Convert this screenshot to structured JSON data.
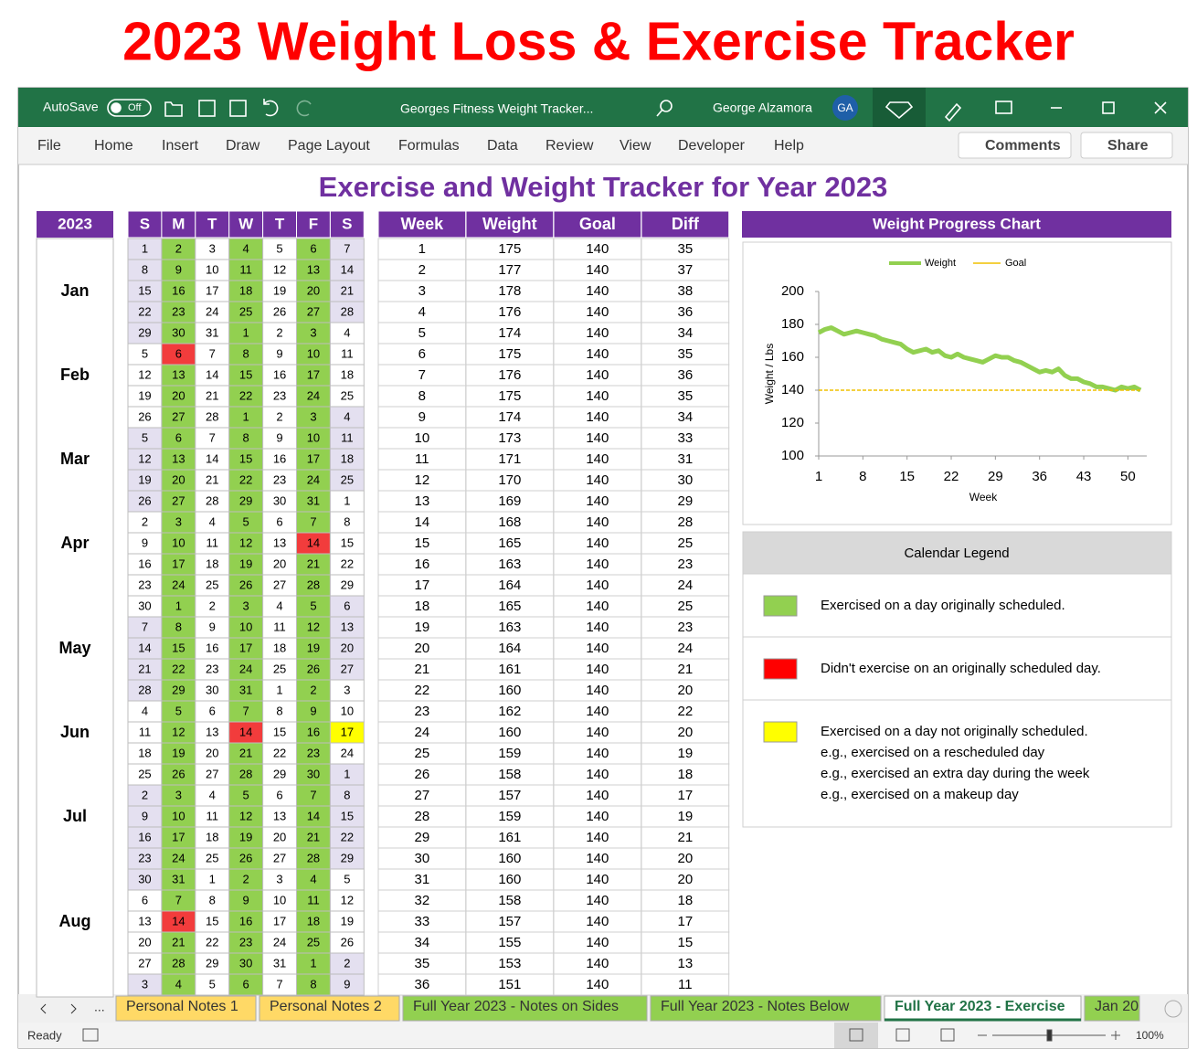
{
  "header": {
    "title": "2023 Weight Loss & Exercise Tracker"
  },
  "window": {
    "autosave": "AutoSave",
    "autosave_state": "Off",
    "file_name": "Georges Fitness Weight Tracker...",
    "user": "George Alzamora",
    "user_initials": "GA"
  },
  "ribbon": {
    "tabs": [
      "File",
      "Home",
      "Insert",
      "Draw",
      "Page Layout",
      "Formulas",
      "Data",
      "Review",
      "View",
      "Developer",
      "Help"
    ],
    "comments": "Comments",
    "share": "Share"
  },
  "sheet": {
    "title": "Exercise and Weight Tracker for Year 2023"
  },
  "calendar": {
    "year": "2023",
    "weekdays": [
      "S",
      "M",
      "T",
      "W",
      "T",
      "F",
      "S"
    ],
    "colors": {
      "l": "#e4e0f0",
      "g": "#92d050",
      "r": "#f23c3c",
      "y": "#ffff00",
      "w": "#ffffff"
    },
    "weeks": [
      {
        "days": [
          1,
          2,
          3,
          4,
          5,
          6,
          7
        ],
        "colors": "lgwgwgl"
      },
      {
        "days": [
          8,
          9,
          10,
          11,
          12,
          13,
          14
        ],
        "colors": "lgwgwgl"
      },
      {
        "days": [
          15,
          16,
          17,
          18,
          19,
          20,
          21
        ],
        "colors": "lgwgwgl",
        "month": "Jan"
      },
      {
        "days": [
          22,
          23,
          24,
          25,
          26,
          27,
          28
        ],
        "colors": "lgwgwgl"
      },
      {
        "days": [
          29,
          30,
          31,
          1,
          2,
          3,
          4
        ],
        "colors": "lgwgwgw"
      },
      {
        "days": [
          5,
          6,
          7,
          8,
          9,
          10,
          11
        ],
        "colors": "wrwgwgw"
      },
      {
        "days": [
          12,
          13,
          14,
          15,
          16,
          17,
          18
        ],
        "colors": "wgwgwgw",
        "month": "Feb"
      },
      {
        "days": [
          19,
          20,
          21,
          22,
          23,
          24,
          25
        ],
        "colors": "wgwgwgw"
      },
      {
        "days": [
          26,
          27,
          28,
          1,
          2,
          3,
          4
        ],
        "colors": "wgwgwgl"
      },
      {
        "days": [
          5,
          6,
          7,
          8,
          9,
          10,
          11
        ],
        "colors": "lgwgwgl"
      },
      {
        "days": [
          12,
          13,
          14,
          15,
          16,
          17,
          18
        ],
        "colors": "lgwgwgl",
        "month": "Mar"
      },
      {
        "days": [
          19,
          20,
          21,
          22,
          23,
          24,
          25
        ],
        "colors": "lgwgwgl"
      },
      {
        "days": [
          26,
          27,
          28,
          29,
          30,
          31,
          1
        ],
        "colors": "lgwgwgw"
      },
      {
        "days": [
          2,
          3,
          4,
          5,
          6,
          7,
          8
        ],
        "colors": "wgwgwgw"
      },
      {
        "days": [
          9,
          10,
          11,
          12,
          13,
          14,
          15
        ],
        "colors": "wgwgwrw",
        "month": "Apr"
      },
      {
        "days": [
          16,
          17,
          18,
          19,
          20,
          21,
          22
        ],
        "colors": "wgwgwgw"
      },
      {
        "days": [
          23,
          24,
          25,
          26,
          27,
          28,
          29
        ],
        "colors": "wgwgwgw"
      },
      {
        "days": [
          30,
          1,
          2,
          3,
          4,
          5,
          6
        ],
        "colors": "wgwgwgl"
      },
      {
        "days": [
          7,
          8,
          9,
          10,
          11,
          12,
          13
        ],
        "colors": "lgwgwgl"
      },
      {
        "days": [
          14,
          15,
          16,
          17,
          18,
          19,
          20
        ],
        "colors": "lgwgwgl",
        "month": "May"
      },
      {
        "days": [
          21,
          22,
          23,
          24,
          25,
          26,
          27
        ],
        "colors": "lgwgwgl"
      },
      {
        "days": [
          28,
          29,
          30,
          31,
          1,
          2,
          3
        ],
        "colors": "lgwgwgw"
      },
      {
        "days": [
          4,
          5,
          6,
          7,
          8,
          9,
          10
        ],
        "colors": "wgwgwgw"
      },
      {
        "days": [
          11,
          12,
          13,
          14,
          15,
          16,
          17
        ],
        "colors": "wgwrwgy",
        "month": "Jun"
      },
      {
        "days": [
          18,
          19,
          20,
          21,
          22,
          23,
          24
        ],
        "colors": "wgwgwgw"
      },
      {
        "days": [
          25,
          26,
          27,
          28,
          29,
          30,
          1
        ],
        "colors": "wgwgwgl"
      },
      {
        "days": [
          2,
          3,
          4,
          5,
          6,
          7,
          8
        ],
        "colors": "lgwgwgl"
      },
      {
        "days": [
          9,
          10,
          11,
          12,
          13,
          14,
          15
        ],
        "colors": "lgwgwgl",
        "month": "Jul"
      },
      {
        "days": [
          16,
          17,
          18,
          19,
          20,
          21,
          22
        ],
        "colors": "lgwgwgl"
      },
      {
        "days": [
          23,
          24,
          25,
          26,
          27,
          28,
          29
        ],
        "colors": "lgwgwgl"
      },
      {
        "days": [
          30,
          31,
          1,
          2,
          3,
          4,
          5
        ],
        "colors": "lgwgwgw"
      },
      {
        "days": [
          6,
          7,
          8,
          9,
          10,
          11,
          12
        ],
        "colors": "wgwgwgw"
      },
      {
        "days": [
          13,
          14,
          15,
          16,
          17,
          18,
          19
        ],
        "colors": "wrwgwgw",
        "month": "Aug"
      },
      {
        "days": [
          20,
          21,
          22,
          23,
          24,
          25,
          26
        ],
        "colors": "wgwgwgw"
      },
      {
        "days": [
          27,
          28,
          29,
          30,
          31,
          1,
          2
        ],
        "colors": "wgwgwgl"
      },
      {
        "days": [
          3,
          4,
          5,
          6,
          7,
          8,
          9
        ],
        "colors": "lgwgwgl"
      }
    ]
  },
  "table": {
    "header": [
      "Week",
      "Weight",
      "Goal",
      "Diff"
    ],
    "rows": [
      [
        1,
        175,
        140,
        35
      ],
      [
        2,
        177,
        140,
        37
      ],
      [
        3,
        178,
        140,
        38
      ],
      [
        4,
        176,
        140,
        36
      ],
      [
        5,
        174,
        140,
        34
      ],
      [
        6,
        175,
        140,
        35
      ],
      [
        7,
        176,
        140,
        36
      ],
      [
        8,
        175,
        140,
        35
      ],
      [
        9,
        174,
        140,
        34
      ],
      [
        10,
        173,
        140,
        33
      ],
      [
        11,
        171,
        140,
        31
      ],
      [
        12,
        170,
        140,
        30
      ],
      [
        13,
        169,
        140,
        29
      ],
      [
        14,
        168,
        140,
        28
      ],
      [
        15,
        165,
        140,
        25
      ],
      [
        16,
        163,
        140,
        23
      ],
      [
        17,
        164,
        140,
        24
      ],
      [
        18,
        165,
        140,
        25
      ],
      [
        19,
        163,
        140,
        23
      ],
      [
        20,
        164,
        140,
        24
      ],
      [
        21,
        161,
        140,
        21
      ],
      [
        22,
        160,
        140,
        20
      ],
      [
        23,
        162,
        140,
        22
      ],
      [
        24,
        160,
        140,
        20
      ],
      [
        25,
        159,
        140,
        19
      ],
      [
        26,
        158,
        140,
        18
      ],
      [
        27,
        157,
        140,
        17
      ],
      [
        28,
        159,
        140,
        19
      ],
      [
        29,
        161,
        140,
        21
      ],
      [
        30,
        160,
        140,
        20
      ],
      [
        31,
        160,
        140,
        20
      ],
      [
        32,
        158,
        140,
        18
      ],
      [
        33,
        157,
        140,
        17
      ],
      [
        34,
        155,
        140,
        15
      ],
      [
        35,
        153,
        140,
        13
      ],
      [
        36,
        151,
        140,
        11
      ]
    ]
  },
  "chart_data": {
    "type": "line",
    "title": "Weight Progress Chart",
    "x_label": "Week",
    "y_label": "Weight / Lbs",
    "legend": "top",
    "x": [
      1,
      2,
      3,
      4,
      5,
      6,
      7,
      8,
      9,
      10,
      11,
      12,
      13,
      14,
      15,
      16,
      17,
      18,
      19,
      20,
      21,
      22,
      23,
      24,
      25,
      26,
      27,
      28,
      29,
      30,
      31,
      32,
      33,
      34,
      35,
      36,
      37,
      38,
      39,
      40,
      41,
      42,
      43,
      44,
      45,
      46,
      47,
      48,
      49,
      50,
      51,
      52
    ],
    "series": [
      {
        "name": "Weight",
        "color": "#92d050",
        "values": [
          175,
          177,
          178,
          176,
          174,
          175,
          176,
          175,
          174,
          173,
          171,
          170,
          169,
          168,
          165,
          163,
          164,
          165,
          163,
          164,
          161,
          160,
          162,
          160,
          159,
          158,
          157,
          159,
          161,
          160,
          160,
          158,
          157,
          155,
          153,
          151,
          152,
          151,
          153,
          149,
          147,
          147,
          145,
          144,
          142,
          142,
          141,
          140,
          142,
          141,
          142,
          140
        ]
      },
      {
        "name": "Goal",
        "color": "#f0c000",
        "values": [
          140,
          140,
          140,
          140,
          140,
          140,
          140,
          140,
          140,
          140,
          140,
          140,
          140,
          140,
          140,
          140,
          140,
          140,
          140,
          140,
          140,
          140,
          140,
          140,
          140,
          140,
          140,
          140,
          140,
          140,
          140,
          140,
          140,
          140,
          140,
          140,
          140,
          140,
          140,
          140,
          140,
          140,
          140,
          140,
          140,
          140,
          140,
          140,
          140,
          140,
          140,
          140
        ]
      }
    ],
    "xlim": [
      1,
      54
    ],
    "xticks": [
      1,
      8,
      15,
      22,
      29,
      36,
      43,
      50
    ],
    "ylim": [
      100,
      200
    ],
    "yticks": [
      100,
      120,
      140,
      160,
      180,
      200
    ]
  },
  "legend": {
    "title": "Calendar Legend",
    "items": [
      {
        "color": "#92d050",
        "lines": [
          "Exercised on a day originally scheduled."
        ]
      },
      {
        "color": "#ff0000",
        "lines": [
          "Didn't exercise on an originally scheduled day."
        ]
      },
      {
        "color": "#ffff00",
        "lines": [
          "Exercised on a day not originally scheduled.",
          "e.g., exercised on a rescheduled day",
          "e.g., exercised an extra day during the week",
          "e.g., exercised on a makeup day"
        ]
      }
    ]
  },
  "sheet_tabs": {
    "more": "...",
    "tabs": [
      {
        "name": "Personal Notes 1",
        "color": "#ffd966"
      },
      {
        "name": "Personal Notes 2",
        "color": "#ffd966"
      },
      {
        "name": "Full Year 2023 - Notes on Sides",
        "color": "#92d050"
      },
      {
        "name": "Full Year 2023 - Notes Below",
        "color": "#92d050"
      },
      {
        "name": "Full Year 2023 - Exercise",
        "color": "#ffffff",
        "active": true
      },
      {
        "name": "Jan 20",
        "color": "#92d050"
      }
    ]
  },
  "status": {
    "state": "Ready",
    "zoom": "100%"
  }
}
